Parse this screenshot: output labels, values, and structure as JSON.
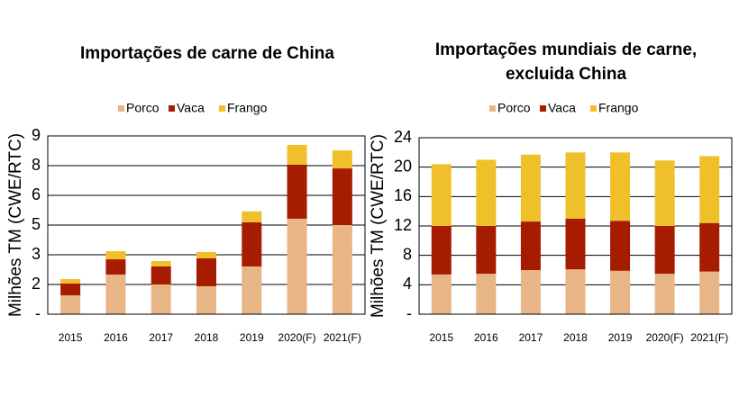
{
  "chart_data": [
    {
      "type": "stacked_bar",
      "title": "Importações de carne de China",
      "y_label": "Milhões TM (CWE/RTC)",
      "categories": [
        "2015",
        "2016",
        "2017",
        "2018",
        "2019",
        "2020(F)",
        "2021(F)"
      ],
      "series": [
        {
          "name": "Porco",
          "color": "#e8b587",
          "values": [
            0.95,
            2.0,
            1.5,
            1.41,
            2.41,
            4.82,
            4.5
          ]
        },
        {
          "name": "Vaca",
          "color": "#a61c00",
          "values": [
            0.6,
            0.77,
            0.91,
            1.41,
            2.23,
            2.73,
            2.86
          ]
        },
        {
          "name": "Frango",
          "color": "#f0c02a",
          "values": [
            0.22,
            0.41,
            0.27,
            0.32,
            0.55,
            1.0,
            0.91
          ]
        }
      ],
      "ylim": [
        0,
        9
      ],
      "yticks": [
        {
          "value": 0,
          "label": "-"
        },
        {
          "value": 1.5,
          "label": "2"
        },
        3,
        {
          "value": 4.5,
          "label": "5"
        },
        6,
        {
          "value": 7.5,
          "label": "8"
        },
        9
      ],
      "grid": true
    },
    {
      "type": "stacked_bar",
      "title": "Importações mundiais de carne, excluida China",
      "y_label": "Milhões TM (CWE/RTC)",
      "categories": [
        "2015",
        "2016",
        "2017",
        "2018",
        "2019",
        "2020(F)",
        "2021(F)"
      ],
      "series": [
        {
          "name": "Porco",
          "color": "#e8b587",
          "values": [
            5.4,
            5.5,
            6.0,
            6.1,
            5.9,
            5.5,
            5.8
          ]
        },
        {
          "name": "Vaca",
          "color": "#a61c00",
          "values": [
            6.6,
            6.5,
            6.6,
            6.9,
            6.8,
            6.5,
            6.6
          ]
        },
        {
          "name": "Frango",
          "color": "#f0c02a",
          "values": [
            8.4,
            9.0,
            9.1,
            9.0,
            9.3,
            8.9,
            9.1
          ]
        }
      ],
      "ylim": [
        0,
        24
      ],
      "yticks": [
        {
          "value": 0,
          "label": "-"
        },
        4,
        8,
        12,
        16,
        20,
        24
      ],
      "grid": true
    }
  ]
}
